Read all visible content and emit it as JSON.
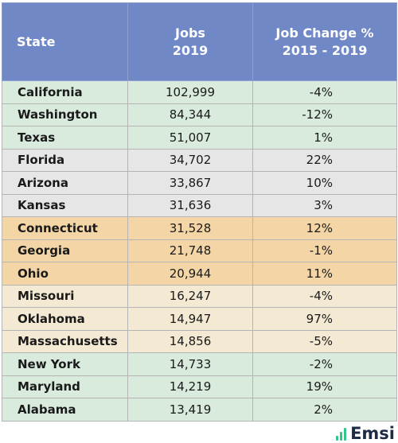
{
  "table": {
    "headers": {
      "state": "State",
      "jobs_line1": "Jobs",
      "jobs_line2": "2019",
      "change_line1": "Job Change %",
      "change_line2": "2015 - 2019"
    },
    "row_colors": {
      "group_a": "#d8ebdd",
      "group_b": "#e6e6e6",
      "group_c": "#f3d5a6",
      "group_d": "#f4ead4",
      "header": "#7188c6"
    },
    "rows": [
      {
        "state": "California",
        "jobs": "102,999",
        "change": "-4%"
      },
      {
        "state": "Washington",
        "jobs": "84,344",
        "change": "-12%"
      },
      {
        "state": "Texas",
        "jobs": "51,007",
        "change": "1%"
      },
      {
        "state": "Florida",
        "jobs": "34,702",
        "change": "22%"
      },
      {
        "state": "Arizona",
        "jobs": "33,867",
        "change": "10%"
      },
      {
        "state": "Kansas",
        "jobs": "31,636",
        "change": "3%"
      },
      {
        "state": "Connecticut",
        "jobs": "31,528",
        "change": "12%"
      },
      {
        "state": "Georgia",
        "jobs": "21,748",
        "change": "-1%"
      },
      {
        "state": "Ohio",
        "jobs": "20,944",
        "change": "11%"
      },
      {
        "state": "Missouri",
        "jobs": "16,247",
        "change": "-4%"
      },
      {
        "state": "Oklahoma",
        "jobs": "14,947",
        "change": "97%"
      },
      {
        "state": "Massachusetts",
        "jobs": "14,856",
        "change": "-5%"
      },
      {
        "state": "New York",
        "jobs": "14,733",
        "change": "-2%"
      },
      {
        "state": "Maryland",
        "jobs": "14,219",
        "change": "19%"
      },
      {
        "state": "Alabama",
        "jobs": "13,419",
        "change": "2%"
      }
    ]
  },
  "brand": {
    "name": "Emsi",
    "icon": "bar-chart-icon",
    "color": "#34c58a"
  }
}
